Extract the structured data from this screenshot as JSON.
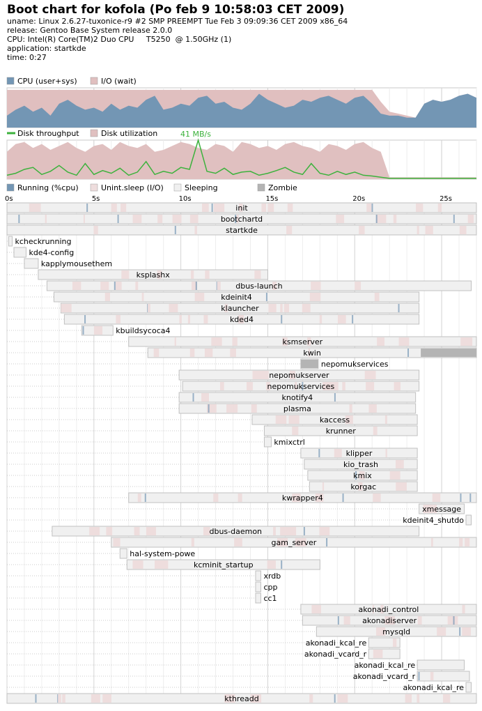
{
  "header": {
    "title": "Boot chart for kofola (Po feb  9 10:58:03 CET 2009)",
    "uname": "uname: Linux 2.6.27-tuxonice-r9 #2 SMP PREEMPT Tue Feb 3 09:09:36 CET 2009 x86_64",
    "release": "release: Gentoo Base System release 2.0.0",
    "cpu": "CPU: Intel(R) Core(TM)2 Duo CPU     T5250  @ 1.50GHz (1)",
    "application": "application: startkde",
    "time": "time: 0:27"
  },
  "colors": {
    "cpu": "#7396b4",
    "io": "#e0bfbf",
    "throughput": "#3cb23c",
    "utilization": "#e0c0c0",
    "running": "#7396b4",
    "unint": "#eedddd",
    "sleeping": "#f0f0f0",
    "zombie": "#b4b4b4",
    "box_border": "#c0c0c0"
  },
  "legend_cpu": [
    {
      "label": "CPU (user+sys)",
      "color": "#7396b4"
    },
    {
      "label": "I/O (wait)",
      "color": "#e0bfbf"
    }
  ],
  "legend_disk": [
    {
      "label": "Disk throughput",
      "color": "#3cb23c",
      "kind": "line"
    },
    {
      "label": "Disk utilization",
      "color": "#e0c0c0",
      "kind": "box"
    }
  ],
  "disk_peak_label": "41 MB/s",
  "legend_proc": [
    {
      "label": "Running (%cpu)",
      "color": "#7396b4"
    },
    {
      "label": "Unint.sleep (I/O)",
      "color": "#eedddd"
    },
    {
      "label": "Sleeping",
      "color": "#f0f0f0"
    },
    {
      "label": "Zombie",
      "color": "#b4b4b4"
    }
  ],
  "chart_data": [
    {
      "type": "area",
      "xlabel": "time (s)",
      "xlim": [
        0,
        27
      ],
      "ylim": [
        0,
        100
      ],
      "x": [
        0,
        0.5,
        1,
        1.5,
        2,
        2.5,
        3,
        3.5,
        4,
        4.5,
        5,
        5.5,
        6,
        6.5,
        7,
        7.5,
        8,
        8.5,
        9,
        9.5,
        10,
        10.5,
        11,
        11.5,
        12,
        12.5,
        13,
        13.5,
        14,
        14.5,
        15,
        15.5,
        16,
        16.5,
        17,
        17.5,
        18,
        18.5,
        19,
        19.5,
        20,
        20.5,
        21,
        21.5,
        22,
        22.5,
        23,
        23.5,
        24,
        24.5,
        25,
        25.5,
        26,
        26.5,
        27
      ],
      "series": [
        {
          "name": "CPU (user+sys)",
          "values": [
            30,
            45,
            55,
            40,
            50,
            30,
            60,
            70,
            55,
            45,
            50,
            40,
            60,
            45,
            55,
            50,
            70,
            80,
            45,
            50,
            60,
            55,
            75,
            80,
            60,
            65,
            50,
            45,
            60,
            85,
            70,
            60,
            50,
            55,
            70,
            65,
            75,
            80,
            70,
            60,
            75,
            80,
            60,
            35,
            30,
            30,
            25,
            25,
            60,
            70,
            65,
            70,
            80,
            85,
            75
          ]
        },
        {
          "name": "I/O (wait)",
          "values": [
            65,
            50,
            40,
            55,
            45,
            65,
            35,
            25,
            40,
            50,
            45,
            55,
            35,
            50,
            40,
            45,
            25,
            15,
            50,
            45,
            35,
            40,
            20,
            15,
            35,
            30,
            45,
            50,
            35,
            10,
            25,
            35,
            45,
            40,
            25,
            30,
            20,
            15,
            25,
            35,
            20,
            15,
            35,
            30,
            10,
            5,
            5,
            0,
            0,
            0,
            0,
            0,
            0,
            0,
            0
          ]
        }
      ]
    },
    {
      "type": "line",
      "xlim": [
        0,
        27
      ],
      "ylim": [
        0,
        100
      ],
      "x": [
        0,
        0.5,
        1,
        1.5,
        2,
        2.5,
        3,
        3.5,
        4,
        4.5,
        5,
        5.5,
        6,
        6.5,
        7,
        7.5,
        8,
        8.5,
        9,
        9.5,
        10,
        10.5,
        11,
        11.5,
        12,
        12.5,
        13,
        13.5,
        14,
        14.5,
        15,
        15.5,
        16,
        16.5,
        17,
        17.5,
        18,
        18.5,
        19,
        19.5,
        20,
        20.5,
        21,
        21.5,
        22,
        22.5,
        23,
        23.5,
        24,
        24.5,
        25,
        25.5,
        26,
        26.5,
        27
      ],
      "series": [
        {
          "name": "Disk utilization",
          "values": [
            70,
            90,
            95,
            80,
            90,
            75,
            85,
            95,
            80,
            70,
            85,
            90,
            75,
            95,
            85,
            80,
            90,
            70,
            75,
            85,
            95,
            90,
            80,
            75,
            90,
            85,
            70,
            95,
            90,
            80,
            85,
            75,
            90,
            95,
            85,
            80,
            70,
            90,
            85,
            75,
            90,
            95,
            80,
            70,
            5,
            5,
            5,
            5,
            5,
            5,
            5,
            5,
            5,
            5,
            5
          ]
        },
        {
          "name": "Disk throughput",
          "values": [
            10,
            15,
            25,
            30,
            12,
            20,
            35,
            18,
            10,
            40,
            12,
            22,
            15,
            28,
            10,
            18,
            45,
            12,
            20,
            15,
            30,
            25,
            100,
            20,
            15,
            28,
            12,
            18,
            20,
            10,
            15,
            22,
            30,
            18,
            12,
            40,
            15,
            10,
            20,
            12,
            18,
            10,
            8,
            5,
            2,
            2,
            2,
            2,
            2,
            2,
            2,
            2,
            2,
            2,
            2
          ]
        }
      ]
    },
    {
      "type": "bar",
      "title": "",
      "xlabel": "",
      "xlim": [
        0,
        27
      ],
      "x_ticks": [
        "0s",
        "5s",
        "10s",
        "15s",
        "20s",
        "25s"
      ],
      "processes": [
        {
          "name": "init",
          "start": 0,
          "end": 27.0,
          "label_pos": "inside",
          "row": 0
        },
        {
          "name": "bootchartd",
          "start": 0,
          "end": 27.0,
          "label_pos": "inside",
          "row": 1
        },
        {
          "name": "startkde",
          "start": 0,
          "end": 27.0,
          "label_pos": "inside",
          "row": 2
        },
        {
          "name": "kcheckrunning",
          "start": 0.1,
          "end": 0.3,
          "label_pos": "right",
          "row": 3
        },
        {
          "name": "kde4-config",
          "start": 0.4,
          "end": 1.1,
          "label_pos": "right",
          "row": 4
        },
        {
          "name": "kapplymousethem",
          "start": 1.0,
          "end": 1.8,
          "label_pos": "right",
          "row": 5
        },
        {
          "name": "ksplashx",
          "start": 1.8,
          "end": 15.0,
          "label_pos": "inside",
          "row": 6
        },
        {
          "name": "dbus-launch",
          "start": 2.3,
          "end": 26.7,
          "label_pos": "inside",
          "row": 7
        },
        {
          "name": "kdeinit4",
          "start": 2.7,
          "end": 23.7,
          "label_pos": "inside",
          "row": 8
        },
        {
          "name": "klauncher",
          "start": 3.1,
          "end": 23.7,
          "label_pos": "inside",
          "row": 9
        },
        {
          "name": "kded4",
          "start": 3.3,
          "end": 23.7,
          "label_pos": "inside",
          "row": 10
        },
        {
          "name": "kbuildsycoca4",
          "start": 4.3,
          "end": 6.1,
          "label_pos": "right",
          "row": 11
        },
        {
          "name": "ksmserver",
          "start": 7.0,
          "end": 27.0,
          "label_pos": "inside",
          "row": 12
        },
        {
          "name": "kwin",
          "start": 8.1,
          "end": 27.0,
          "label_pos": "inside",
          "row": 13
        },
        {
          "name": "nepomukservices",
          "start": 16.9,
          "end": 17.9,
          "label_pos": "right",
          "row": 14
        },
        {
          "name": "nepomukserver",
          "start": 9.9,
          "end": 23.7,
          "label_pos": "inside",
          "row": 15
        },
        {
          "name": "nepomukservices",
          "start": 10.1,
          "end": 23.7,
          "label_pos": "inside",
          "row": 16
        },
        {
          "name": "knotify4",
          "start": 9.9,
          "end": 23.5,
          "label_pos": "inside",
          "row": 17
        },
        {
          "name": "plasma",
          "start": 9.9,
          "end": 23.5,
          "label_pos": "inside",
          "row": 18
        },
        {
          "name": "kaccess",
          "start": 14.1,
          "end": 23.6,
          "label_pos": "inside",
          "row": 19
        },
        {
          "name": "krunner",
          "start": 14.8,
          "end": 23.6,
          "label_pos": "inside",
          "row": 20
        },
        {
          "name": "kmixctrl",
          "start": 14.8,
          "end": 15.2,
          "label_pos": "right",
          "row": 21
        },
        {
          "name": "klipper",
          "start": 16.9,
          "end": 23.6,
          "label_pos": "inside",
          "row": 22
        },
        {
          "name": "kio_trash",
          "start": 17.1,
          "end": 23.6,
          "label_pos": "inside",
          "row": 23
        },
        {
          "name": "kmix",
          "start": 17.3,
          "end": 23.6,
          "label_pos": "inside",
          "row": 24
        },
        {
          "name": "korgac",
          "start": 17.4,
          "end": 23.6,
          "label_pos": "inside",
          "row": 25
        },
        {
          "name": "kwrapper4",
          "start": 7.0,
          "end": 27.0,
          "label_pos": "inside",
          "row": 26
        },
        {
          "name": "xmessage",
          "start": 23.7,
          "end": 26.3,
          "label_pos": "inside",
          "row": 27
        },
        {
          "name": "kdeinit4_shutdo",
          "start": 26.4,
          "end": 26.7,
          "label_pos": "left",
          "row": 28
        },
        {
          "name": "dbus-daemon",
          "start": 2.6,
          "end": 23.7,
          "label_pos": "inside",
          "row": 29
        },
        {
          "name": "gam_server",
          "start": 6.0,
          "end": 27.0,
          "label_pos": "inside",
          "row": 30
        },
        {
          "name": "hal-system-powe",
          "start": 6.5,
          "end": 6.9,
          "label_pos": "right",
          "row": 31
        },
        {
          "name": "kcminit_startup",
          "start": 6.9,
          "end": 18.0,
          "label_pos": "inside",
          "row": 32
        },
        {
          "name": "xrdb",
          "start": 14.3,
          "end": 14.6,
          "label_pos": "right",
          "row": 33
        },
        {
          "name": "cpp",
          "start": 14.3,
          "end": 14.6,
          "label_pos": "right",
          "row": 34
        },
        {
          "name": "cc1",
          "start": 14.3,
          "end": 14.6,
          "label_pos": "right",
          "row": 35
        },
        {
          "name": "akonadi_control",
          "start": 16.9,
          "end": 27.0,
          "label_pos": "inside",
          "row": 36
        },
        {
          "name": "akonadiserver",
          "start": 17.0,
          "end": 27.0,
          "label_pos": "inside",
          "row": 37
        },
        {
          "name": "mysqld",
          "start": 17.8,
          "end": 27.0,
          "label_pos": "inside",
          "row": 38
        },
        {
          "name": "akonadi_kcal_re",
          "start": 20.8,
          "end": 22.6,
          "label_pos": "left",
          "row": 39
        },
        {
          "name": "akonadi_vcard_r",
          "start": 20.8,
          "end": 22.6,
          "label_pos": "left",
          "row": 40
        },
        {
          "name": "akonadi_kcal_re",
          "start": 23.6,
          "end": 26.3,
          "label_pos": "left",
          "row": 41
        },
        {
          "name": "akonadi_vcard_r",
          "start": 23.6,
          "end": 26.6,
          "label_pos": "left",
          "row": 42
        },
        {
          "name": "akonadi_kcal_re",
          "start": 26.4,
          "end": 26.7,
          "label_pos": "left",
          "row": 43
        },
        {
          "name": "kthreadd",
          "start": 0,
          "end": 27.0,
          "label_pos": "inside",
          "row": 44
        }
      ]
    }
  ]
}
